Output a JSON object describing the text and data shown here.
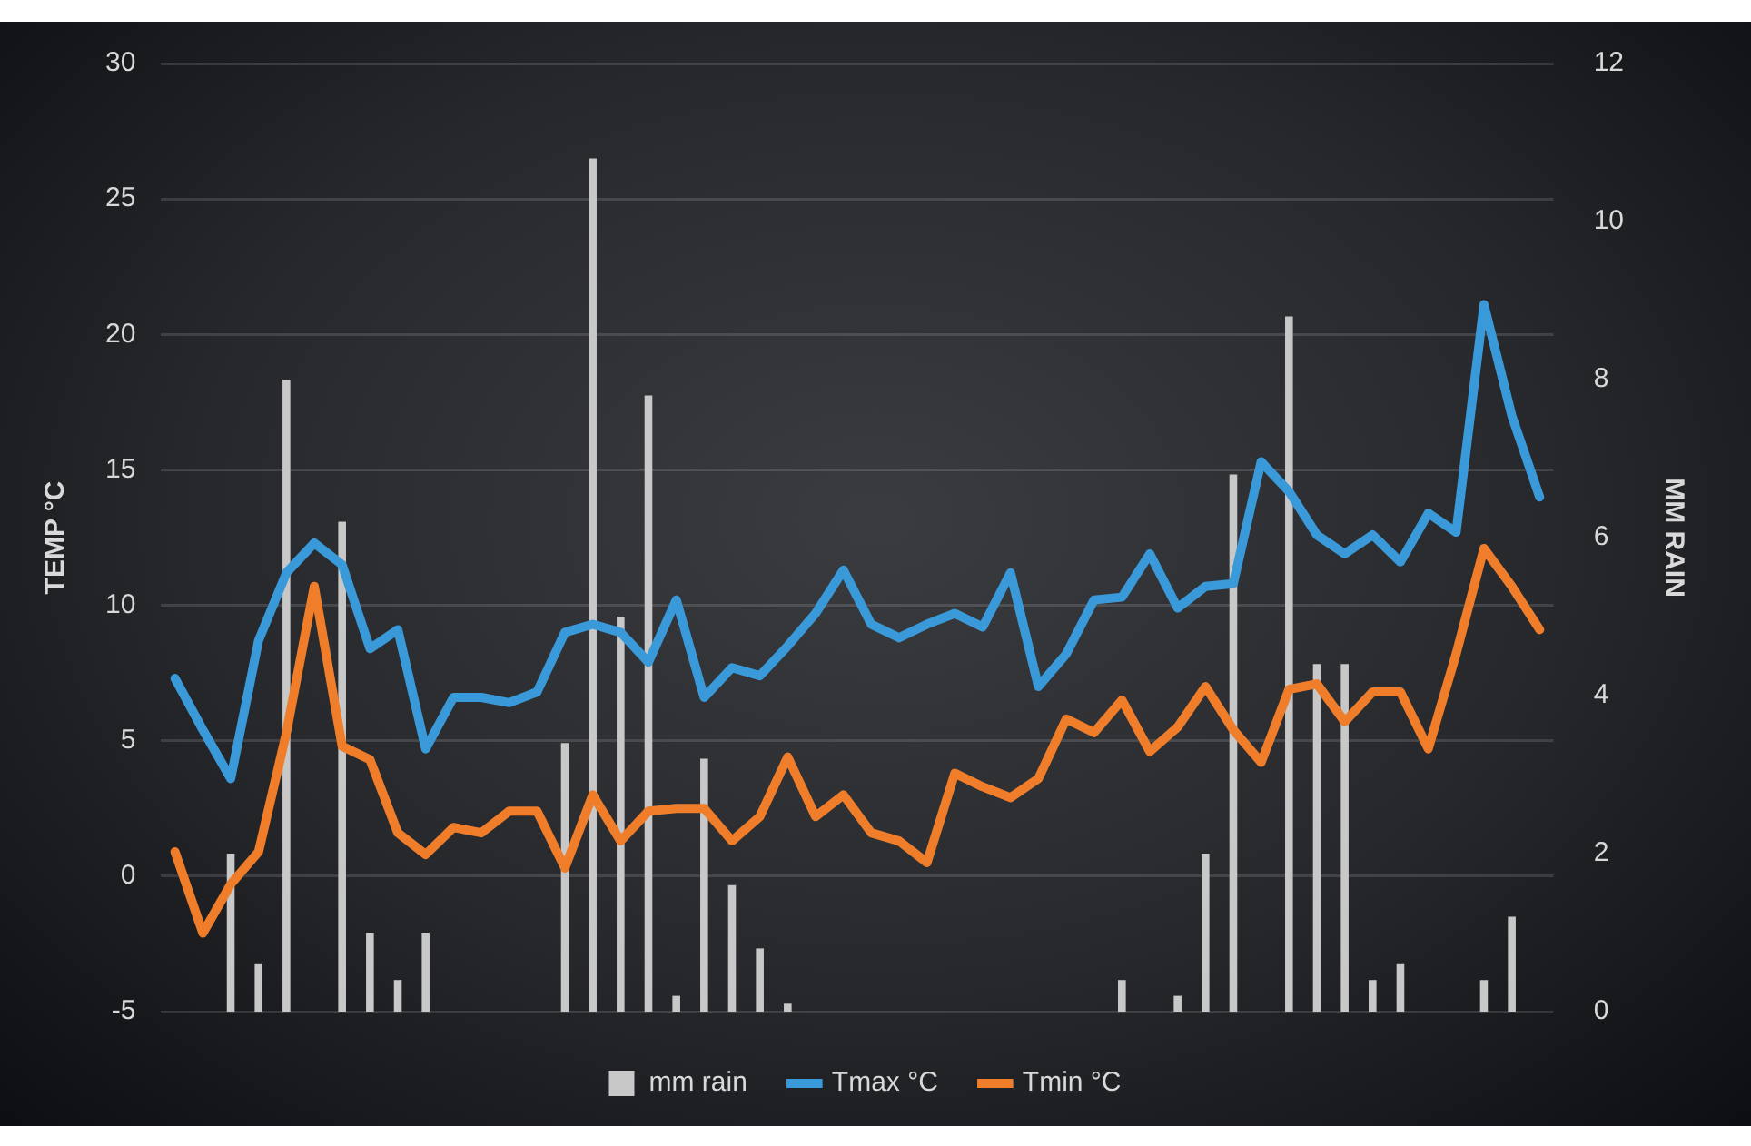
{
  "chart_data": {
    "type": "line",
    "ylabel": "TEMP °C",
    "y2label": "MM RAIN",
    "categories": [
      null,
      null,
      null,
      null,
      null,
      null,
      null,
      null,
      null,
      null,
      null,
      null,
      null,
      null,
      null,
      null,
      null,
      null,
      null,
      null,
      null,
      null,
      null,
      null,
      null,
      null,
      null,
      null,
      null,
      null,
      null,
      null,
      null,
      null,
      null,
      null,
      null,
      null,
      null,
      null,
      null,
      null,
      null,
      null,
      null,
      null,
      null,
      null,
      null,
      null
    ],
    "series": [
      {
        "name": "mm rain",
        "type": "bar",
        "axis": "y2",
        "color": "#c8c8c8",
        "values": [
          0,
          0,
          2.0,
          0.6,
          8.0,
          0,
          6.2,
          1.0,
          0.4,
          1.0,
          0,
          0,
          0,
          0,
          3.4,
          10.8,
          5.0,
          7.8,
          0.2,
          3.2,
          1.6,
          0.8,
          0.1,
          0,
          0,
          0,
          0,
          0,
          0,
          0,
          0,
          0,
          0,
          0,
          0.4,
          0,
          0.2,
          2.0,
          6.8,
          0,
          8.8,
          4.4,
          4.4,
          0.4,
          0.6,
          0,
          0,
          0.4,
          1.2,
          0
        ]
      },
      {
        "name": "Tmax °C",
        "color": "#3a9ad9",
        "values": [
          7.3,
          5.4,
          3.6,
          8.7,
          11.2,
          12.3,
          11.5,
          8.4,
          9.1,
          4.7,
          6.6,
          6.6,
          6.4,
          6.8,
          9.0,
          9.3,
          9.0,
          7.9,
          10.2,
          6.6,
          7.7,
          7.4,
          8.5,
          9.7,
          11.3,
          9.3,
          8.8,
          9.3,
          9.7,
          9.2,
          11.2,
          7.0,
          8.2,
          10.2,
          10.3,
          11.9,
          9.9,
          10.7,
          10.8,
          15.3,
          14.2,
          12.6,
          11.9,
          12.6,
          11.6,
          13.4,
          12.7,
          21.1,
          17.0,
          14.0
        ]
      },
      {
        "name": "Tmin °C",
        "color": "#f07d2a",
        "values": [
          0.9,
          -2.1,
          -0.3,
          0.9,
          5.3,
          10.7,
          4.8,
          4.3,
          1.6,
          0.8,
          1.8,
          1.6,
          2.4,
          2.4,
          0.3,
          3.0,
          1.3,
          2.4,
          2.5,
          2.5,
          1.3,
          2.2,
          4.4,
          2.2,
          3.0,
          1.6,
          1.3,
          0.5,
          3.8,
          3.3,
          2.9,
          3.6,
          5.8,
          5.3,
          6.5,
          4.6,
          5.5,
          7.0,
          5.4,
          4.2,
          6.9,
          7.1,
          5.7,
          6.8,
          6.8,
          4.7,
          8.2,
          12.1,
          10.7,
          9.1
        ]
      }
    ],
    "ylim": [
      -5,
      30
    ],
    "yticks": [
      -5,
      0,
      5,
      10,
      15,
      20,
      25,
      30
    ],
    "y2lim": [
      0,
      12
    ],
    "y2ticks": [
      0,
      2,
      4,
      6,
      8,
      10,
      12
    ],
    "grid": "y",
    "legend": "bottom",
    "tick_labels": "y",
    "marker": "none",
    "line_style": "solid"
  }
}
